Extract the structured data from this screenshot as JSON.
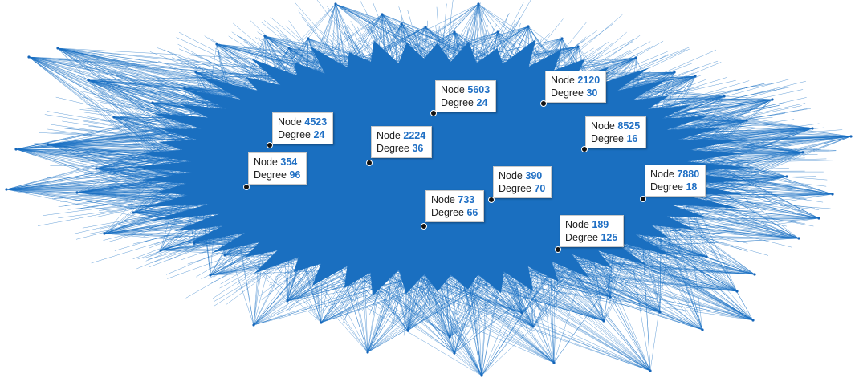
{
  "edge_color": "#1a70c4",
  "body_color": "#1a6fc0",
  "tooltip_value_color": "#1f6fc4",
  "node_label": "Node",
  "degree_label": "Degree",
  "datatips": [
    {
      "node": "4523",
      "degree": "24"
    },
    {
      "node": "354",
      "degree": "96"
    },
    {
      "node": "5603",
      "degree": "24"
    },
    {
      "node": "2224",
      "degree": "36"
    },
    {
      "node": "2120",
      "degree": "30"
    },
    {
      "node": "8525",
      "degree": "16"
    },
    {
      "node": "390",
      "degree": "70"
    },
    {
      "node": "733",
      "degree": "66"
    },
    {
      "node": "7880",
      "degree": "18"
    },
    {
      "node": "189",
      "degree": "125"
    }
  ]
}
